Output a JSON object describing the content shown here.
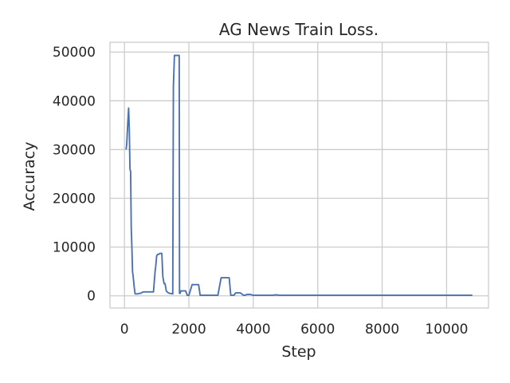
{
  "chart_data": {
    "type": "line",
    "title": "AG News Train Loss.",
    "xlabel": "Step",
    "ylabel": "Accuracy",
    "xlim": [
      -450,
      11300
    ],
    "ylim": [
      -2500,
      52000
    ],
    "xticks": [
      0,
      2000,
      4000,
      6000,
      8000,
      10000
    ],
    "yticks": [
      0,
      10000,
      20000,
      30000,
      40000,
      50000
    ],
    "xtick_labels": [
      "0",
      "2000",
      "4000",
      "6000",
      "8000",
      "10000"
    ],
    "ytick_labels": [
      "0",
      "10000",
      "20000",
      "30000",
      "40000",
      "50000"
    ],
    "grid": true,
    "colors": {
      "line": "#4c72b0",
      "grid": "#cccccc",
      "text": "#262626"
    },
    "series": [
      {
        "x": [
          50,
          70,
          100,
          130,
          150,
          170,
          190,
          210,
          230,
          250,
          270,
          300,
          330,
          350,
          380,
          400,
          420,
          450,
          500,
          550,
          600,
          700,
          800,
          900,
          950,
          970,
          1000,
          1030,
          1060,
          1100,
          1130,
          1160,
          1190,
          1230,
          1260,
          1300,
          1340,
          1400,
          1500,
          1520,
          1550,
          1600,
          1650,
          1700,
          1710,
          1730,
          1750,
          1800,
          1850,
          1900,
          1950,
          2000,
          2100,
          2150,
          2200,
          2300,
          2350,
          2400,
          2500,
          2700,
          2900,
          3000,
          3050,
          3100,
          3250,
          3300,
          3400,
          3450,
          3500,
          3600,
          3700,
          3750,
          3800,
          3900,
          4000,
          4100,
          4500,
          4600,
          4700,
          4800,
          5000,
          6000,
          7000,
          8000,
          9000,
          10000,
          10800
        ],
        "y": [
          30000,
          31000,
          35000,
          38500,
          34000,
          26000,
          25500,
          14000,
          10000,
          5000,
          4000,
          2000,
          400,
          400,
          400,
          400,
          400,
          500,
          500,
          700,
          800,
          800,
          800,
          800,
          5000,
          6000,
          8200,
          8500,
          8500,
          8700,
          8700,
          8700,
          4000,
          2500,
          2500,
          1000,
          700,
          500,
          400,
          43000,
          49300,
          49300,
          49300,
          49300,
          500,
          500,
          1000,
          1000,
          1000,
          1000,
          100,
          100,
          2300,
          2300,
          2300,
          2300,
          100,
          100,
          100,
          100,
          100,
          3700,
          3700,
          3700,
          3700,
          100,
          100,
          600,
          600,
          600,
          100,
          100,
          300,
          300,
          100,
          100,
          100,
          100,
          200,
          100,
          100,
          100,
          100,
          100,
          100,
          100,
          100
        ]
      }
    ]
  }
}
